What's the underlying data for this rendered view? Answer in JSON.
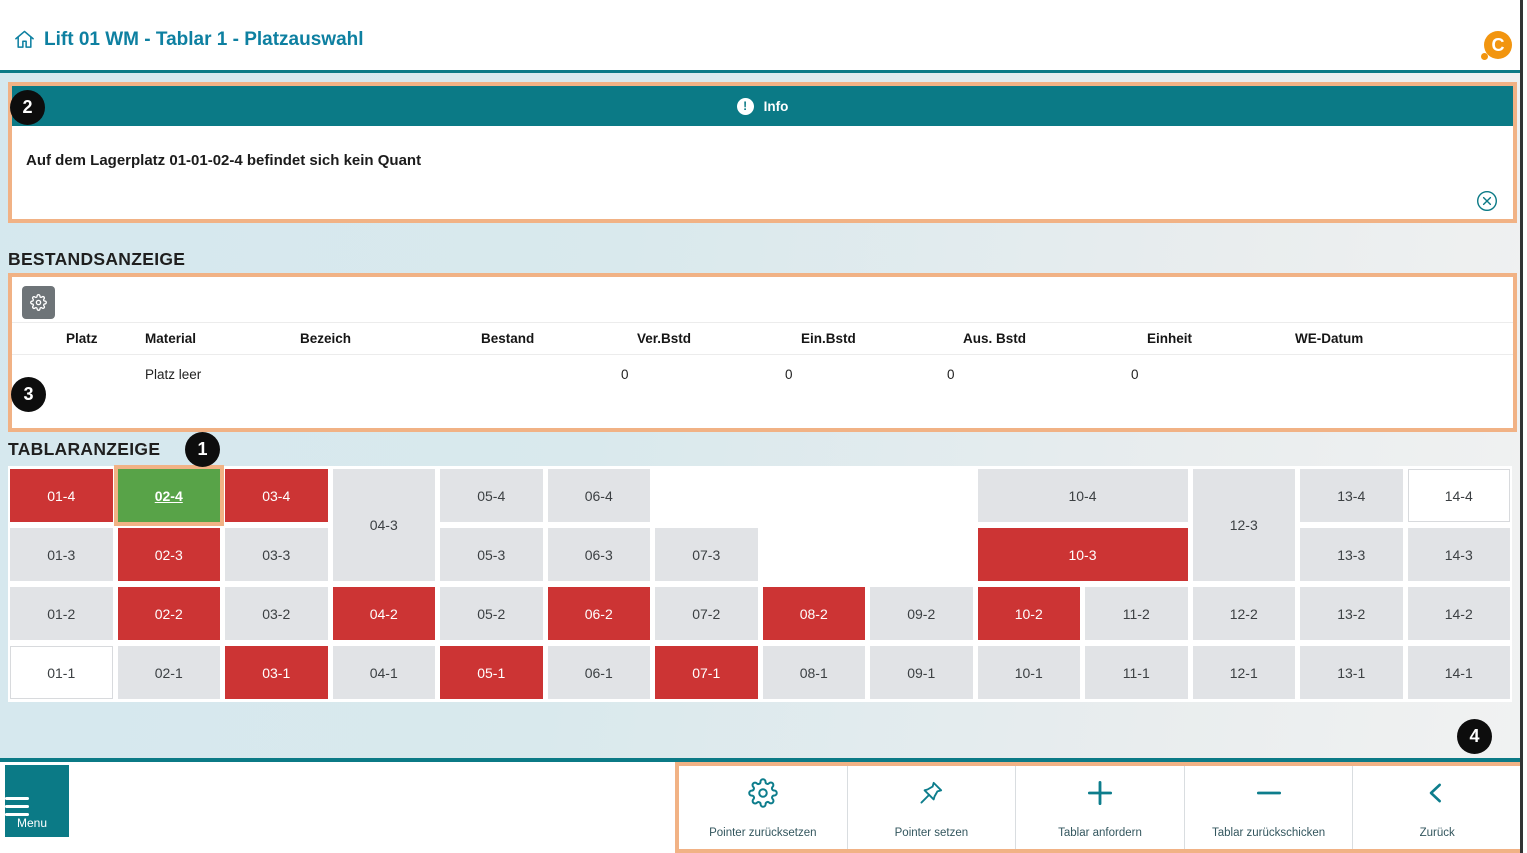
{
  "colors": {
    "teal": "#0b7a86",
    "title_teal": "#0e80a1",
    "annotation_orange": "#f1b285",
    "occupied_red": "#cc3434",
    "selected_green": "#58a348",
    "free_gray": "#e1e3e6",
    "logo_orange": "#f2950f"
  },
  "header": {
    "title": "Lift 01 WM - Tablar 1 - Platzauswahl",
    "logo_letter": "C"
  },
  "info_panel": {
    "badge": "2",
    "title": "Info",
    "info_mark": "!",
    "message": "Auf dem Lagerplatz 01-01-02-4 befindet sich kein Quant"
  },
  "bestand": {
    "badge": "3",
    "section_title": "BESTANDSANZEIGE",
    "columns": [
      "Platz",
      "Material",
      "Bezeich",
      "Bestand",
      "Ver.Bstd",
      "Ein.Bstd",
      "Aus. Bstd",
      "Einheit",
      "WE-Datum"
    ],
    "values": [
      "",
      "Platz leer",
      "",
      "",
      "0",
      "0",
      "0",
      "0",
      ""
    ]
  },
  "tablar": {
    "badge": "1",
    "section_title": "TABLARANZEIGE",
    "cells": [
      {
        "label": "01-4",
        "state": "red",
        "col": 1,
        "row": 1
      },
      {
        "label": "02-4",
        "state": "selected",
        "col": 2,
        "row": 1
      },
      {
        "label": "03-4",
        "state": "red",
        "col": 3,
        "row": 1
      },
      {
        "label": "04-3",
        "state": "gray",
        "col": 4,
        "row": 1,
        "rs": 2
      },
      {
        "label": "05-4",
        "state": "gray",
        "col": 5,
        "row": 1
      },
      {
        "label": "06-4",
        "state": "gray",
        "col": 6,
        "row": 1
      },
      {
        "label": "10-4",
        "state": "gray",
        "col": 10,
        "row": 1,
        "cs": 2
      },
      {
        "label": "12-3",
        "state": "gray",
        "col": 12,
        "row": 1,
        "rs": 2
      },
      {
        "label": "13-4",
        "state": "gray",
        "col": 13,
        "row": 1
      },
      {
        "label": "14-4",
        "state": "white",
        "col": 14,
        "row": 1
      },
      {
        "label": "01-3",
        "state": "gray",
        "col": 1,
        "row": 2
      },
      {
        "label": "02-3",
        "state": "red",
        "col": 2,
        "row": 2
      },
      {
        "label": "03-3",
        "state": "gray",
        "col": 3,
        "row": 2
      },
      {
        "label": "05-3",
        "state": "gray",
        "col": 5,
        "row": 2
      },
      {
        "label": "06-3",
        "state": "gray",
        "col": 6,
        "row": 2
      },
      {
        "label": "07-3",
        "state": "gray",
        "col": 7,
        "row": 2
      },
      {
        "label": "10-3",
        "state": "red",
        "col": 10,
        "row": 2,
        "cs": 2
      },
      {
        "label": "13-3",
        "state": "gray",
        "col": 13,
        "row": 2
      },
      {
        "label": "14-3",
        "state": "gray",
        "col": 14,
        "row": 2
      },
      {
        "label": "01-2",
        "state": "gray",
        "col": 1,
        "row": 3
      },
      {
        "label": "02-2",
        "state": "red",
        "col": 2,
        "row": 3
      },
      {
        "label": "03-2",
        "state": "gray",
        "col": 3,
        "row": 3
      },
      {
        "label": "04-2",
        "state": "red",
        "col": 4,
        "row": 3
      },
      {
        "label": "05-2",
        "state": "gray",
        "col": 5,
        "row": 3
      },
      {
        "label": "06-2",
        "state": "red",
        "col": 6,
        "row": 3
      },
      {
        "label": "07-2",
        "state": "gray",
        "col": 7,
        "row": 3
      },
      {
        "label": "08-2",
        "state": "red",
        "col": 8,
        "row": 3
      },
      {
        "label": "09-2",
        "state": "gray",
        "col": 9,
        "row": 3
      },
      {
        "label": "10-2",
        "state": "red",
        "col": 10,
        "row": 3
      },
      {
        "label": "11-2",
        "state": "gray",
        "col": 11,
        "row": 3
      },
      {
        "label": "12-2",
        "state": "gray",
        "col": 12,
        "row": 3
      },
      {
        "label": "13-2",
        "state": "gray",
        "col": 13,
        "row": 3
      },
      {
        "label": "14-2",
        "state": "gray",
        "col": 14,
        "row": 3
      },
      {
        "label": "01-1",
        "state": "white",
        "col": 1,
        "row": 4
      },
      {
        "label": "02-1",
        "state": "gray",
        "col": 2,
        "row": 4
      },
      {
        "label": "03-1",
        "state": "red",
        "col": 3,
        "row": 4
      },
      {
        "label": "04-1",
        "state": "gray",
        "col": 4,
        "row": 4
      },
      {
        "label": "05-1",
        "state": "red",
        "col": 5,
        "row": 4
      },
      {
        "label": "06-1",
        "state": "gray",
        "col": 6,
        "row": 4
      },
      {
        "label": "07-1",
        "state": "red",
        "col": 7,
        "row": 4
      },
      {
        "label": "08-1",
        "state": "gray",
        "col": 8,
        "row": 4
      },
      {
        "label": "09-1",
        "state": "gray",
        "col": 9,
        "row": 4
      },
      {
        "label": "10-1",
        "state": "gray",
        "col": 10,
        "row": 4
      },
      {
        "label": "11-1",
        "state": "gray",
        "col": 11,
        "row": 4
      },
      {
        "label": "12-1",
        "state": "gray",
        "col": 12,
        "row": 4
      },
      {
        "label": "13-1",
        "state": "gray",
        "col": 13,
        "row": 4
      },
      {
        "label": "14-1",
        "state": "gray",
        "col": 14,
        "row": 4
      }
    ]
  },
  "footer": {
    "badge": "4",
    "menu_label": "Menu",
    "buttons": [
      {
        "label": "Pointer zurücksetzen",
        "icon": "gear"
      },
      {
        "label": "Pointer setzen",
        "icon": "pin"
      },
      {
        "label": "Tablar anfordern",
        "icon": "plus"
      },
      {
        "label": "Tablar zurückschicken",
        "icon": "minus"
      },
      {
        "label": "Zurück",
        "icon": "chevron-left"
      }
    ]
  }
}
